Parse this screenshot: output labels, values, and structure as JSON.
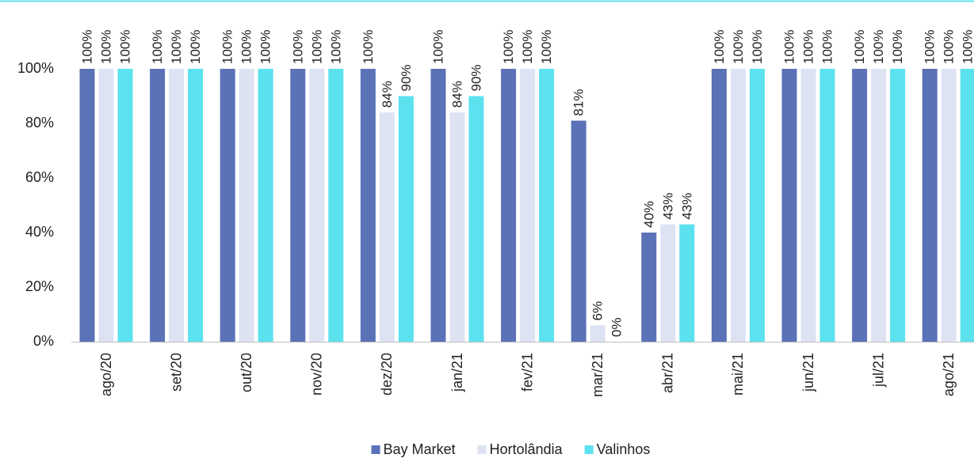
{
  "chart_data": {
    "type": "bar",
    "categories": [
      "ago/20",
      "set/20",
      "out/20",
      "nov/20",
      "dez/20",
      "jan/21",
      "fev/21",
      "mar/21",
      "abr/21",
      "mai/21",
      "jun/21",
      "jul/21",
      "ago/21"
    ],
    "series": [
      {
        "name": "Bay Market",
        "color": "#5b72b8",
        "values": [
          100,
          100,
          100,
          100,
          100,
          100,
          100,
          81,
          40,
          100,
          100,
          100,
          100
        ],
        "value_labels": [
          "100%",
          "100%",
          "100%",
          "100%",
          "100%",
          "100%",
          "100%",
          "81%",
          "40%",
          "100%",
          "100%",
          "100%",
          "100%"
        ]
      },
      {
        "name": "Hortolândia",
        "color": "#dde3f3",
        "values": [
          100,
          100,
          100,
          100,
          84,
          84,
          100,
          6,
          43,
          100,
          100,
          100,
          100
        ],
        "value_labels": [
          "100%",
          "100%",
          "100%",
          "100%",
          "84%",
          "84%",
          "100%",
          "6%",
          "43%",
          "100%",
          "100%",
          "100%",
          "100%"
        ]
      },
      {
        "name": "Valinhos",
        "color": "#5ce1ef",
        "values": [
          100,
          100,
          100,
          100,
          90,
          90,
          100,
          0,
          43,
          100,
          100,
          100,
          100
        ],
        "value_labels": [
          "100%",
          "100%",
          "100%",
          "100%",
          "90%",
          "90%",
          "100%",
          "0%",
          "43%",
          "100%",
          "100%",
          "100%",
          "100%"
        ]
      }
    ],
    "ylim": [
      0,
      100
    ],
    "yticks": [
      {
        "value": 0,
        "label": "0%"
      },
      {
        "value": 20,
        "label": "20%"
      },
      {
        "value": 40,
        "label": "40%"
      },
      {
        "value": 60,
        "label": "60%"
      },
      {
        "value": 80,
        "label": "80%"
      },
      {
        "value": 100,
        "label": "100%"
      }
    ],
    "grid": false,
    "legend": "bottom"
  }
}
